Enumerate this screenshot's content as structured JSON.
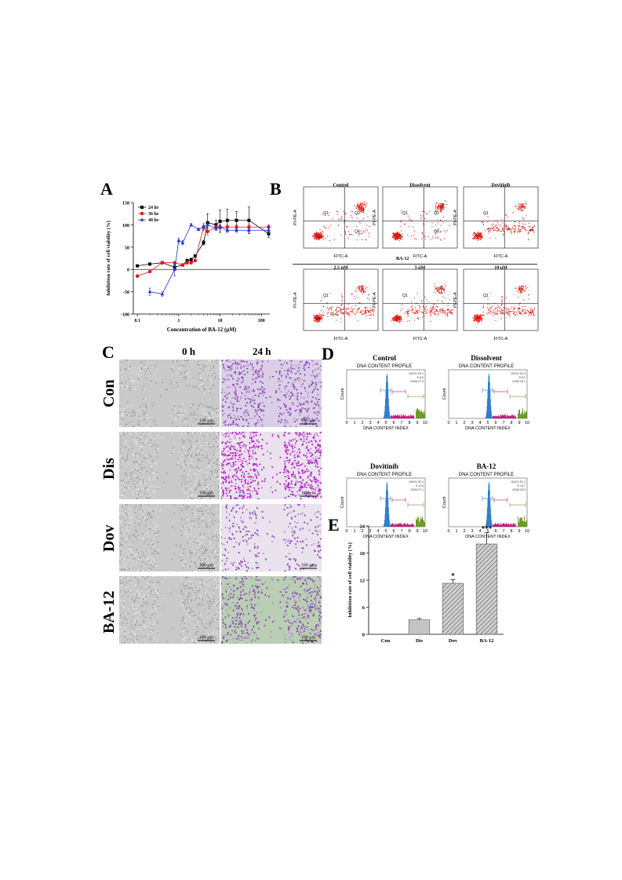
{
  "panels": {
    "A": "A",
    "B": "B",
    "C": "C",
    "D": "D",
    "E": "E"
  },
  "panelA": {
    "chart_data": {
      "type": "line",
      "xscale": "log",
      "xlabel": "Concentration of BA-12 (μM)",
      "ylabel": "Inhibition rate of cell viability (%)",
      "xlim": [
        0.08,
        160
      ],
      "ylim": [
        -100,
        150
      ],
      "yticks": [
        "-100",
        "-50",
        "0",
        "50",
        "100",
        "150"
      ],
      "xticks": [
        {
          "v": 0.1,
          "label": "0.1"
        },
        {
          "v": 1,
          "label": "1"
        },
        {
          "v": 10,
          "label": "10"
        },
        {
          "v": 100,
          "label": "100"
        }
      ],
      "legend_position": "top-left",
      "series": [
        {
          "name": "24 hr",
          "color": "#000000",
          "marker": "square",
          "x": [
            0.1,
            0.2,
            0.4,
            0.8,
            1.25,
            1.6,
            2,
            2.5,
            4,
            5,
            8,
            10,
            15,
            25,
            50,
            150
          ],
          "y": [
            8,
            12,
            15,
            5,
            10,
            20,
            22,
            30,
            60,
            105,
            100,
            108,
            110,
            110,
            110,
            80
          ],
          "err": [
            2,
            2,
            2,
            5,
            3,
            3,
            3,
            3,
            5,
            20,
            10,
            25,
            25,
            20,
            30,
            8
          ]
        },
        {
          "name": "36 hr",
          "color": "#e3151b",
          "marker": "circle",
          "x": [
            0.1,
            0.2,
            0.4,
            0.8,
            1.25,
            1.6,
            2,
            2.5,
            4,
            5,
            8,
            10,
            15,
            25,
            50,
            150
          ],
          "y": [
            -15,
            -5,
            15,
            15,
            10,
            15,
            15,
            20,
            95,
            85,
            95,
            95,
            95,
            95,
            95,
            95
          ],
          "err": [
            3,
            2,
            3,
            3,
            3,
            3,
            3,
            3,
            8,
            8,
            5,
            5,
            5,
            5,
            5,
            5
          ]
        },
        {
          "name": "48 hr",
          "color": "#1f34d6",
          "marker": "triangle",
          "x": [
            0.2,
            0.4,
            0.8,
            1,
            1.25,
            2,
            3,
            4,
            5,
            8,
            10,
            15,
            25,
            50,
            150
          ],
          "y": [
            -50,
            -55,
            0,
            65,
            60,
            100,
            90,
            95,
            100,
            92,
            95,
            88,
            88,
            88,
            88
          ],
          "err": [
            8,
            5,
            15,
            5,
            5,
            3,
            3,
            5,
            8,
            5,
            5,
            5,
            5,
            5,
            8
          ]
        }
      ]
    }
  },
  "panelB": {
    "plots": [
      {
        "title": "Control",
        "q1": "Q1",
        "q2": "Q2",
        "q4": "Q4"
      },
      {
        "title": "Dissolvent",
        "q1": "Q1",
        "q2": "Q2",
        "q4": "Q4"
      },
      {
        "title": "Dovitinib",
        "q1": "Q1",
        "q2": "",
        "q4": ""
      },
      {
        "title": "2.5 μM",
        "q1": "Q1",
        "q2": "",
        "q4": ""
      },
      {
        "title": "5 μM",
        "q1": "Q1",
        "q2": "",
        "q4": ""
      },
      {
        "title": "10 μM",
        "q1": "Q1",
        "q2": "",
        "q4": ""
      }
    ],
    "group_label": "BA-12",
    "xaxis": "FITC-A",
    "yaxis": "PI-PE-A"
  },
  "panelC": {
    "col_headers": [
      "0 h",
      "24 h"
    ],
    "rows": [
      "Con",
      "Dis",
      "Dov",
      "BA-12"
    ],
    "scale": "100 μm"
  },
  "panelD": {
    "plots": [
      {
        "title": "Control",
        "subtitle": "DNA CONTENT PROFILE",
        "stats": [
          "G0/G1 62.1",
          "S 6.6",
          "G2/M 27.5"
        ]
      },
      {
        "title": "Dissolvent",
        "subtitle": "DNA CONTENT PROFILE",
        "stats": [
          "G0/G1 61.5",
          "S 8.0",
          "G2/M 26.1"
        ]
      },
      {
        "title": "Dovitinib",
        "subtitle": "DNA CONTENT PROFILE",
        "stats": [
          "G0/G1 52.4",
          "S 11.6",
          "G2/M 27.1"
        ]
      },
      {
        "title": "BA-12",
        "subtitle": "DNA CONTENT PROFILE",
        "stats": [
          "G0/G1 51.1",
          "S 10.7",
          "G2/M 26.5"
        ]
      }
    ],
    "xlabel": "DNA CONTENT INDEX",
    "ylabel": "Count",
    "xticks": [
      "0",
      "1",
      "2",
      "3",
      "4",
      "5",
      "6",
      "7",
      "8",
      "9",
      "10"
    ]
  },
  "panelE": {
    "chart_data": {
      "type": "bar",
      "categories": [
        "Con",
        "Dis",
        "Dov",
        "BA-12"
      ],
      "values": [
        0,
        3.2,
        11.3,
        20
      ],
      "errors": [
        0,
        0.3,
        0.8,
        2.5
      ],
      "significance": [
        "",
        "",
        "*",
        "***"
      ],
      "ylabel": "Inhibition rate of cell viability (%)",
      "ylim": [
        0,
        24
      ],
      "yticks": [
        "0",
        "6",
        "12",
        "18",
        "24"
      ]
    }
  }
}
